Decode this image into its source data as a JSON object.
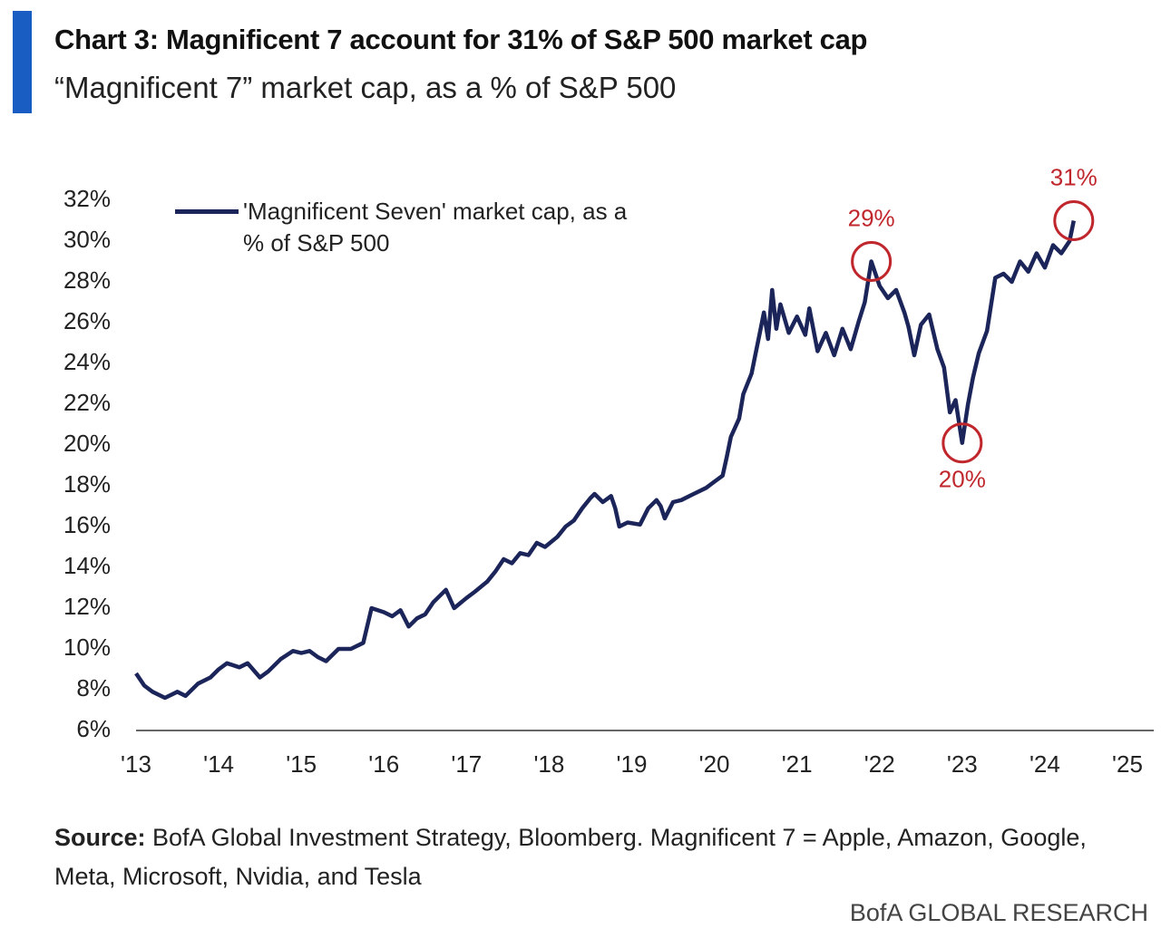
{
  "chart_data": {
    "type": "line",
    "title": "Chart 3: Magnificent 7 account for 31% of S&P 500 market cap",
    "subtitle": "“Magnificent 7” market cap, as a % of S&P 500",
    "series": [
      {
        "name": "'Magnificent Seven' market cap, as a % of S&P 500",
        "color": "#1b2559",
        "x": [
          2013.0,
          2013.1,
          2013.2,
          2013.35,
          2013.5,
          2013.6,
          2013.75,
          2013.9,
          2014.0,
          2014.1,
          2014.25,
          2014.35,
          2014.5,
          2014.6,
          2014.75,
          2014.9,
          2015.0,
          2015.1,
          2015.2,
          2015.3,
          2015.45,
          2015.6,
          2015.75,
          2015.85,
          2016.0,
          2016.1,
          2016.2,
          2016.3,
          2016.4,
          2016.5,
          2016.6,
          2016.75,
          2016.85,
          2017.0,
          2017.1,
          2017.25,
          2017.35,
          2017.45,
          2017.55,
          2017.65,
          2017.75,
          2017.85,
          2017.95,
          2018.1,
          2018.2,
          2018.3,
          2018.4,
          2018.5,
          2018.55,
          2018.65,
          2018.75,
          2018.8,
          2018.85,
          2018.95,
          2019.1,
          2019.2,
          2019.3,
          2019.35,
          2019.4,
          2019.5,
          2019.6,
          2019.75,
          2019.9,
          2020.0,
          2020.1,
          2020.15,
          2020.2,
          2020.3,
          2020.35,
          2020.45,
          2020.5,
          2020.55,
          2020.6,
          2020.65,
          2020.7,
          2020.75,
          2020.8,
          2020.9,
          2021.0,
          2021.1,
          2021.15,
          2021.25,
          2021.35,
          2021.45,
          2021.55,
          2021.65,
          2021.75,
          2021.82,
          2021.9,
          2022.0,
          2022.1,
          2022.2,
          2022.3,
          2022.35,
          2022.42,
          2022.5,
          2022.6,
          2022.7,
          2022.78,
          2022.85,
          2022.92,
          2023.0,
          2023.07,
          2023.13,
          2023.2,
          2023.3,
          2023.4,
          2023.5,
          2023.6,
          2023.7,
          2023.8,
          2023.9,
          2024.0,
          2024.1,
          2024.2,
          2024.3,
          2024.35
        ],
        "values": [
          8.8,
          8.2,
          7.9,
          7.6,
          7.9,
          7.7,
          8.3,
          8.6,
          9.0,
          9.3,
          9.1,
          9.3,
          8.6,
          8.9,
          9.5,
          9.9,
          9.8,
          9.9,
          9.6,
          9.4,
          10.0,
          10.0,
          10.3,
          12.0,
          11.8,
          11.6,
          11.9,
          11.1,
          11.5,
          11.7,
          12.3,
          12.9,
          12.0,
          12.5,
          12.8,
          13.3,
          13.8,
          14.4,
          14.2,
          14.7,
          14.6,
          15.2,
          15.0,
          15.5,
          16.0,
          16.3,
          16.9,
          17.4,
          17.6,
          17.2,
          17.5,
          16.9,
          16.0,
          16.2,
          16.1,
          16.9,
          17.3,
          17.0,
          16.4,
          17.2,
          17.3,
          17.6,
          17.9,
          18.2,
          18.5,
          19.4,
          20.4,
          21.3,
          22.5,
          23.5,
          24.5,
          25.5,
          26.5,
          25.2,
          27.6,
          25.7,
          26.9,
          25.5,
          26.3,
          25.4,
          26.7,
          24.6,
          25.5,
          24.4,
          25.7,
          24.7,
          26.1,
          27.0,
          29.0,
          27.8,
          27.2,
          27.6,
          26.5,
          25.8,
          24.4,
          25.9,
          26.4,
          24.7,
          23.8,
          21.6,
          22.2,
          20.1,
          22.0,
          23.3,
          24.5,
          25.6,
          28.2,
          28.4,
          28.0,
          29.0,
          28.5,
          29.4,
          28.7,
          29.8,
          29.4,
          30.0,
          31.0
        ]
      }
    ],
    "xlim": [
      2013,
      2025.1
    ],
    "xticks": [
      {
        "value": 2013,
        "label": "'13"
      },
      {
        "value": 2014,
        "label": "'14"
      },
      {
        "value": 2015,
        "label": "'15"
      },
      {
        "value": 2016,
        "label": "'16"
      },
      {
        "value": 2017,
        "label": "'17"
      },
      {
        "value": 2018,
        "label": "'18"
      },
      {
        "value": 2019,
        "label": "'19"
      },
      {
        "value": 2020,
        "label": "'20"
      },
      {
        "value": 2021,
        "label": "'21"
      },
      {
        "value": 2022,
        "label": "'22"
      },
      {
        "value": 2023,
        "label": "'23"
      },
      {
        "value": 2024,
        "label": "'24"
      },
      {
        "value": 2025,
        "label": "'25"
      }
    ],
    "ylim": [
      6,
      32
    ],
    "yticks": [
      {
        "value": 6,
        "label": "6%"
      },
      {
        "value": 8,
        "label": "8%"
      },
      {
        "value": 10,
        "label": "10%"
      },
      {
        "value": 12,
        "label": "12%"
      },
      {
        "value": 14,
        "label": "14%"
      },
      {
        "value": 16,
        "label": "16%"
      },
      {
        "value": 18,
        "label": "18%"
      },
      {
        "value": 20,
        "label": "20%"
      },
      {
        "value": 22,
        "label": "22%"
      },
      {
        "value": 24,
        "label": "24%"
      },
      {
        "value": 26,
        "label": "26%"
      },
      {
        "value": 28,
        "label": "28%"
      },
      {
        "value": 30,
        "label": "30%"
      },
      {
        "value": 32,
        "label": "32%"
      }
    ],
    "annotations": [
      {
        "x": 2021.9,
        "y": 29,
        "label": "29%",
        "position": "above"
      },
      {
        "x": 2023.0,
        "y": 20.1,
        "label": "20%",
        "position": "below"
      },
      {
        "x": 2024.35,
        "y": 31,
        "label": "31%",
        "position": "above"
      }
    ],
    "annotation_color": "#c0272d",
    "source_label": "Source:",
    "source": " BofA Global Investment Strategy, Bloomberg. Magnificent 7 = Apple, Amazon, Google, Meta, Microsoft, Nvidia, and Tesla",
    "footer": "BofA GLOBAL RESEARCH"
  }
}
